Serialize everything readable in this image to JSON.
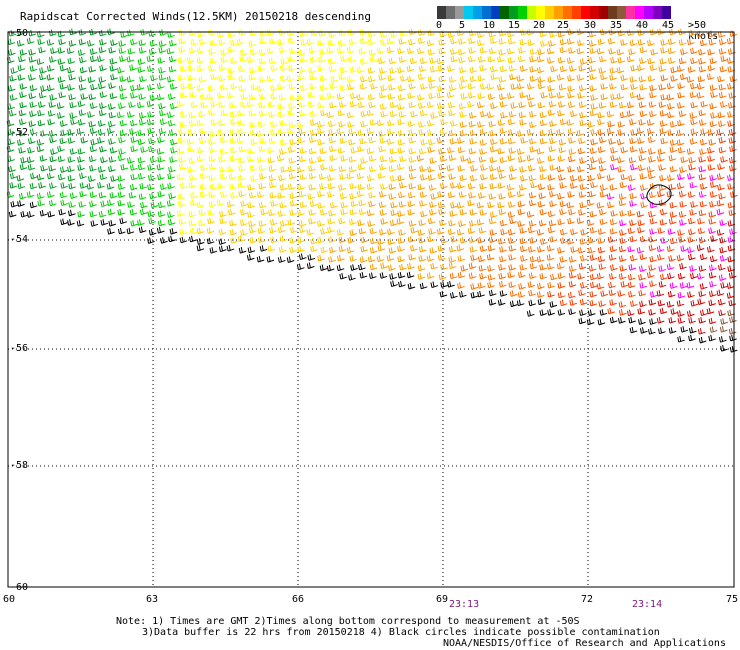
{
  "title": "Rapidscat Corrected Winds(12.5KM) 20150218 descending",
  "legend": {
    "colors": [
      "#3a3a3a",
      "#6e6e6e",
      "#9a9a9a",
      "#00c8f0",
      "#00a0e8",
      "#0070d0",
      "#0040c0",
      "#006400",
      "#009c20",
      "#00d000",
      "#c8ff00",
      "#ffff00",
      "#ffd000",
      "#ffa000",
      "#ff7000",
      "#ff4000",
      "#ff0000",
      "#d00000",
      "#a00000",
      "#6e3a20",
      "#8a5a3a",
      "#ff30a0",
      "#ff00ff",
      "#b400ff",
      "#8000c0",
      "#4000a0"
    ],
    "tick_labels": [
      "0",
      "5",
      "10",
      "15",
      "20",
      "25",
      "30",
      "35",
      "40",
      "45",
      ">50 knots"
    ]
  },
  "map": {
    "lon_labels": [
      "60",
      "63",
      "66",
      "69",
      "72",
      "75"
    ],
    "lat_labels": [
      "-50",
      "-52",
      "-54",
      "-56",
      "-58",
      "-60"
    ],
    "lon_range": [
      60,
      75
    ],
    "lat_range": [
      -60,
      -50
    ]
  },
  "time_labels": [
    "23:13",
    "23:14"
  ],
  "notes": {
    "line1": "Note: 1) Times are GMT 2)Times along bottom correspond to measurement at -50S",
    "line2": "3)Data buffer is 22 hrs from 20150218 4) Black circles indicate possible contamination",
    "credit": "NOAA/NESDIS/Office of Research and Applications"
  }
}
